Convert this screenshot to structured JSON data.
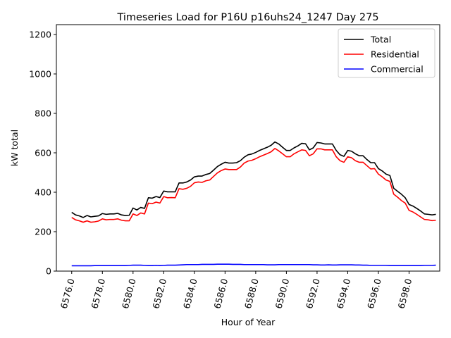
{
  "chart_data": {
    "type": "line",
    "title": "Timeseries Load for P16U p16uhs24_1247  Day 275",
    "xlabel": "Hour of Year",
    "ylabel": "kW total",
    "xlim": [
      6575.0,
      6600.0
    ],
    "ylim": [
      0,
      1250
    ],
    "xticks": [
      6576,
      6578,
      6580,
      6582,
      6584,
      6586,
      6588,
      6590,
      6592,
      6594,
      6596,
      6598
    ],
    "xtick_labels": [
      "6576.0",
      "6578.0",
      "6580.0",
      "6582.0",
      "6584.0",
      "6586.0",
      "6588.0",
      "6590.0",
      "6592.0",
      "6594.0",
      "6596.0",
      "6598.0"
    ],
    "yticks": [
      0,
      200,
      400,
      600,
      800,
      1000,
      1200
    ],
    "ytick_labels": [
      "0",
      "200",
      "400",
      "600",
      "800",
      "1000",
      "1200"
    ],
    "legend_position": "top-right",
    "x_start": 6576.0,
    "x_step": 0.25,
    "series": [
      {
        "name": "Total",
        "color": "#000000",
        "values": [
          298,
          285,
          280,
          272,
          282,
          275,
          278,
          280,
          292,
          288,
          290,
          290,
          293,
          285,
          282,
          283,
          320,
          310,
          323,
          318,
          372,
          370,
          378,
          373,
          406,
          402,
          402,
          402,
          447,
          447,
          452,
          462,
          478,
          482,
          482,
          490,
          495,
          512,
          530,
          542,
          552,
          548,
          548,
          550,
          560,
          578,
          590,
          594,
          602,
          612,
          620,
          628,
          638,
          655,
          645,
          628,
          612,
          612,
          625,
          635,
          648,
          646,
          615,
          625,
          652,
          650,
          645,
          645,
          645,
          612,
          590,
          582,
          612,
          608,
          595,
          585,
          585,
          566,
          550,
          550,
          520,
          508,
          492,
          485,
          420,
          405,
          390,
          372,
          338,
          330,
          318,
          305,
          290,
          288,
          285,
          288
        ]
      },
      {
        "name": "Residential",
        "color": "#ff0000",
        "values": [
          272,
          260,
          255,
          248,
          255,
          248,
          250,
          254,
          265,
          260,
          262,
          262,
          265,
          258,
          255,
          255,
          290,
          282,
          295,
          290,
          345,
          342,
          350,
          345,
          378,
          372,
          373,
          372,
          418,
          415,
          420,
          430,
          448,
          452,
          450,
          458,
          462,
          480,
          498,
          510,
          518,
          515,
          515,
          515,
          528,
          548,
          558,
          562,
          570,
          580,
          588,
          596,
          605,
          622,
          610,
          595,
          580,
          580,
          595,
          605,
          615,
          612,
          585,
          595,
          620,
          620,
          615,
          615,
          615,
          580,
          560,
          552,
          580,
          575,
          560,
          552,
          552,
          535,
          518,
          520,
          492,
          478,
          462,
          455,
          390,
          375,
          358,
          345,
          308,
          300,
          288,
          275,
          262,
          260,
          256,
          258
        ]
      },
      {
        "name": "Commercial",
        "color": "#0000ff",
        "values": [
          27,
          27,
          27,
          27,
          27,
          27,
          28,
          28,
          28,
          28,
          28,
          28,
          28,
          28,
          28,
          29,
          30,
          30,
          30,
          29,
          28,
          28,
          29,
          28,
          29,
          30,
          30,
          30,
          31,
          32,
          33,
          33,
          33,
          33,
          34,
          34,
          34,
          34,
          35,
          35,
          35,
          35,
          34,
          34,
          34,
          33,
          33,
          33,
          33,
          33,
          33,
          32,
          32,
          32,
          33,
          33,
          33,
          33,
          33,
          33,
          33,
          33,
          33,
          32,
          32,
          31,
          31,
          32,
          31,
          31,
          32,
          32,
          32,
          32,
          31,
          31,
          30,
          30,
          29,
          29,
          29,
          29,
          29,
          28,
          28,
          28,
          28,
          28,
          28,
          28,
          28,
          28,
          29,
          29,
          29,
          30
        ]
      }
    ]
  }
}
